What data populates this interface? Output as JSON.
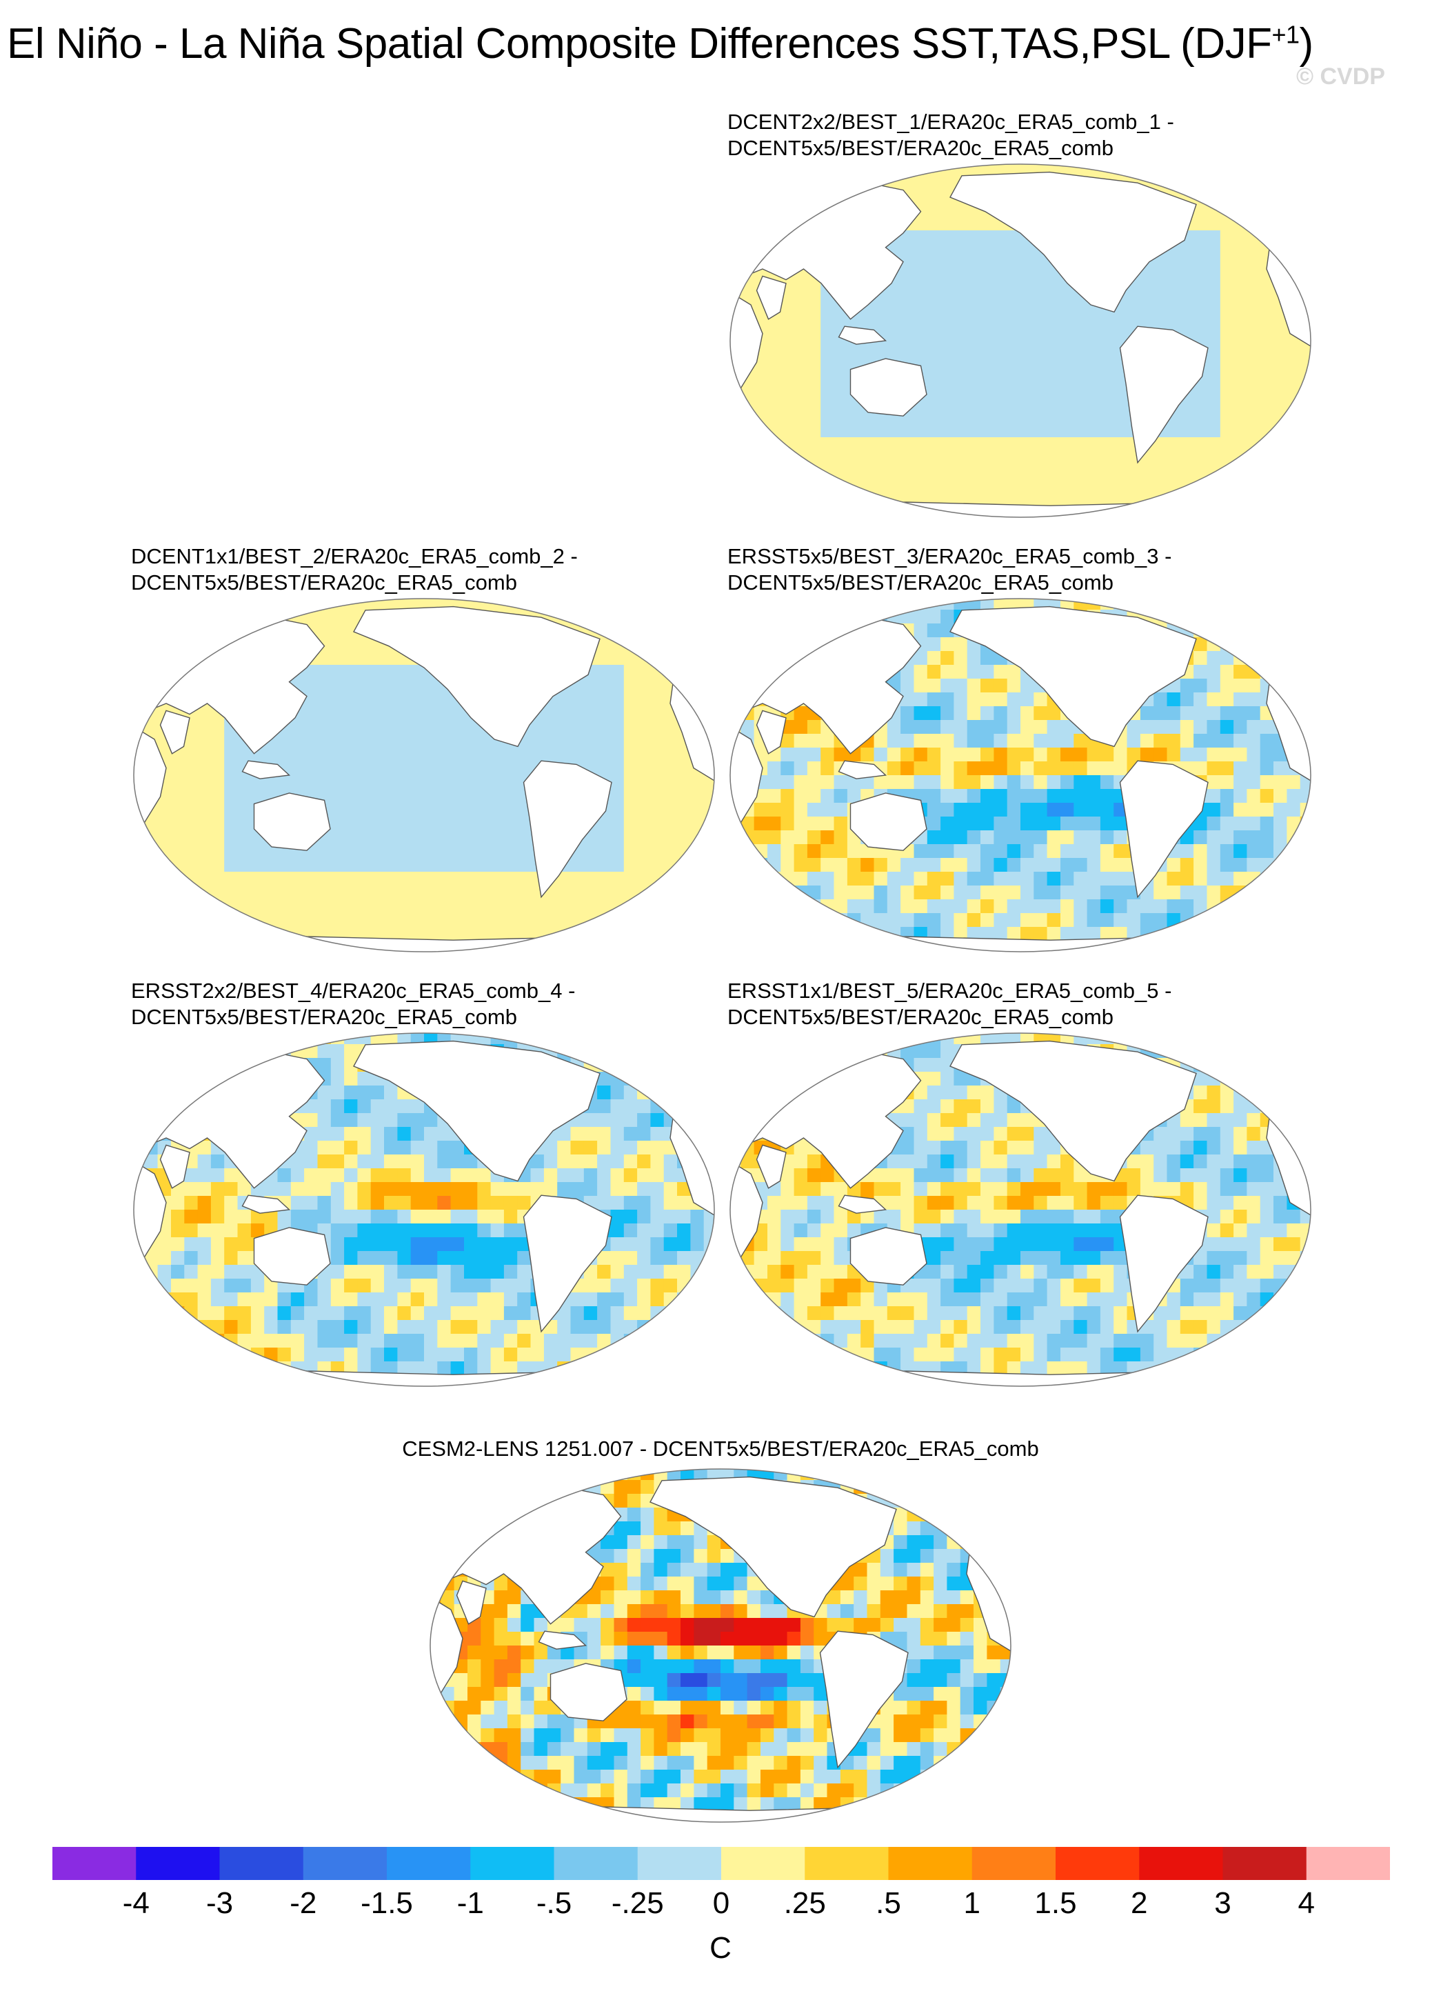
{
  "figure": {
    "title_main": "El Niño - La Niña Spatial Composite Differences SST,TAS,PSL (DJF",
    "title_sup": "+1",
    "title_close": ")",
    "watermark": "© CVDP"
  },
  "chart_data": {
    "type": "heatmap",
    "projection": "Robinson (global map panels)",
    "units": "C",
    "panels": [
      {
        "id": 1,
        "title_line1": "DCENT2x2/BEST_1/ERA20c_ERA5_comb_1 -",
        "title_line2": "DCENT5x5/BEST/ERA20c_ERA5_comb",
        "pattern": "near-zero",
        "range_shown": [
          -0.25,
          0.25
        ]
      },
      {
        "id": 2,
        "title_line1": "DCENT1x1/BEST_2/ERA20c_ERA5_comb_2 -",
        "title_line2": "DCENT5x5/BEST/ERA20c_ERA5_comb",
        "pattern": "near-zero",
        "range_shown": [
          -0.25,
          0.25
        ]
      },
      {
        "id": 3,
        "title_line1": "ERSST5x5/BEST_3/ERA20c_ERA5_comb_3 -",
        "title_line2": "DCENT5x5/BEST/ERA20c_ERA5_comb",
        "pattern": "enso",
        "range_shown": [
          -1.5,
          1
        ]
      },
      {
        "id": 4,
        "title_line1": "ERSST2x2/BEST_4/ERA20c_ERA5_comb_4 -",
        "title_line2": "DCENT5x5/BEST/ERA20c_ERA5_comb",
        "pattern": "enso",
        "range_shown": [
          -1.5,
          1
        ]
      },
      {
        "id": 5,
        "title_line1": "ERSST1x1/BEST_5/ERA20c_ERA5_comb_5 -",
        "title_line2": "DCENT5x5/BEST/ERA20c_ERA5_comb",
        "pattern": "enso",
        "range_shown": [
          -1.5,
          1
        ]
      },
      {
        "id": 6,
        "title_line1": "CESM2-LENS 1251.007 - DCENT5x5/BEST/ERA20c_ERA5_comb",
        "title_line2": "",
        "pattern": "strong-enso",
        "range_shown": [
          -2,
          3
        ]
      }
    ],
    "colorbar": {
      "levels": [
        "-4",
        "-3",
        "-2",
        "-1.5",
        "-1",
        "-.5",
        "-.25",
        "0",
        ".25",
        ".5",
        "1",
        "1.5",
        "2",
        "3",
        "4"
      ],
      "colors": [
        "#8a2be2",
        "#1e10f0",
        "#2a4de0",
        "#3a7ae8",
        "#2893f5",
        "#10bdf5",
        "#7ac8ef",
        "#b3def2",
        "#fff59a",
        "#ffd535",
        "#ffa500",
        "#ff7f16",
        "#ff3a0b",
        "#e8120c",
        "#c91c1c",
        "#ffb4b4"
      ],
      "units": "C"
    }
  }
}
